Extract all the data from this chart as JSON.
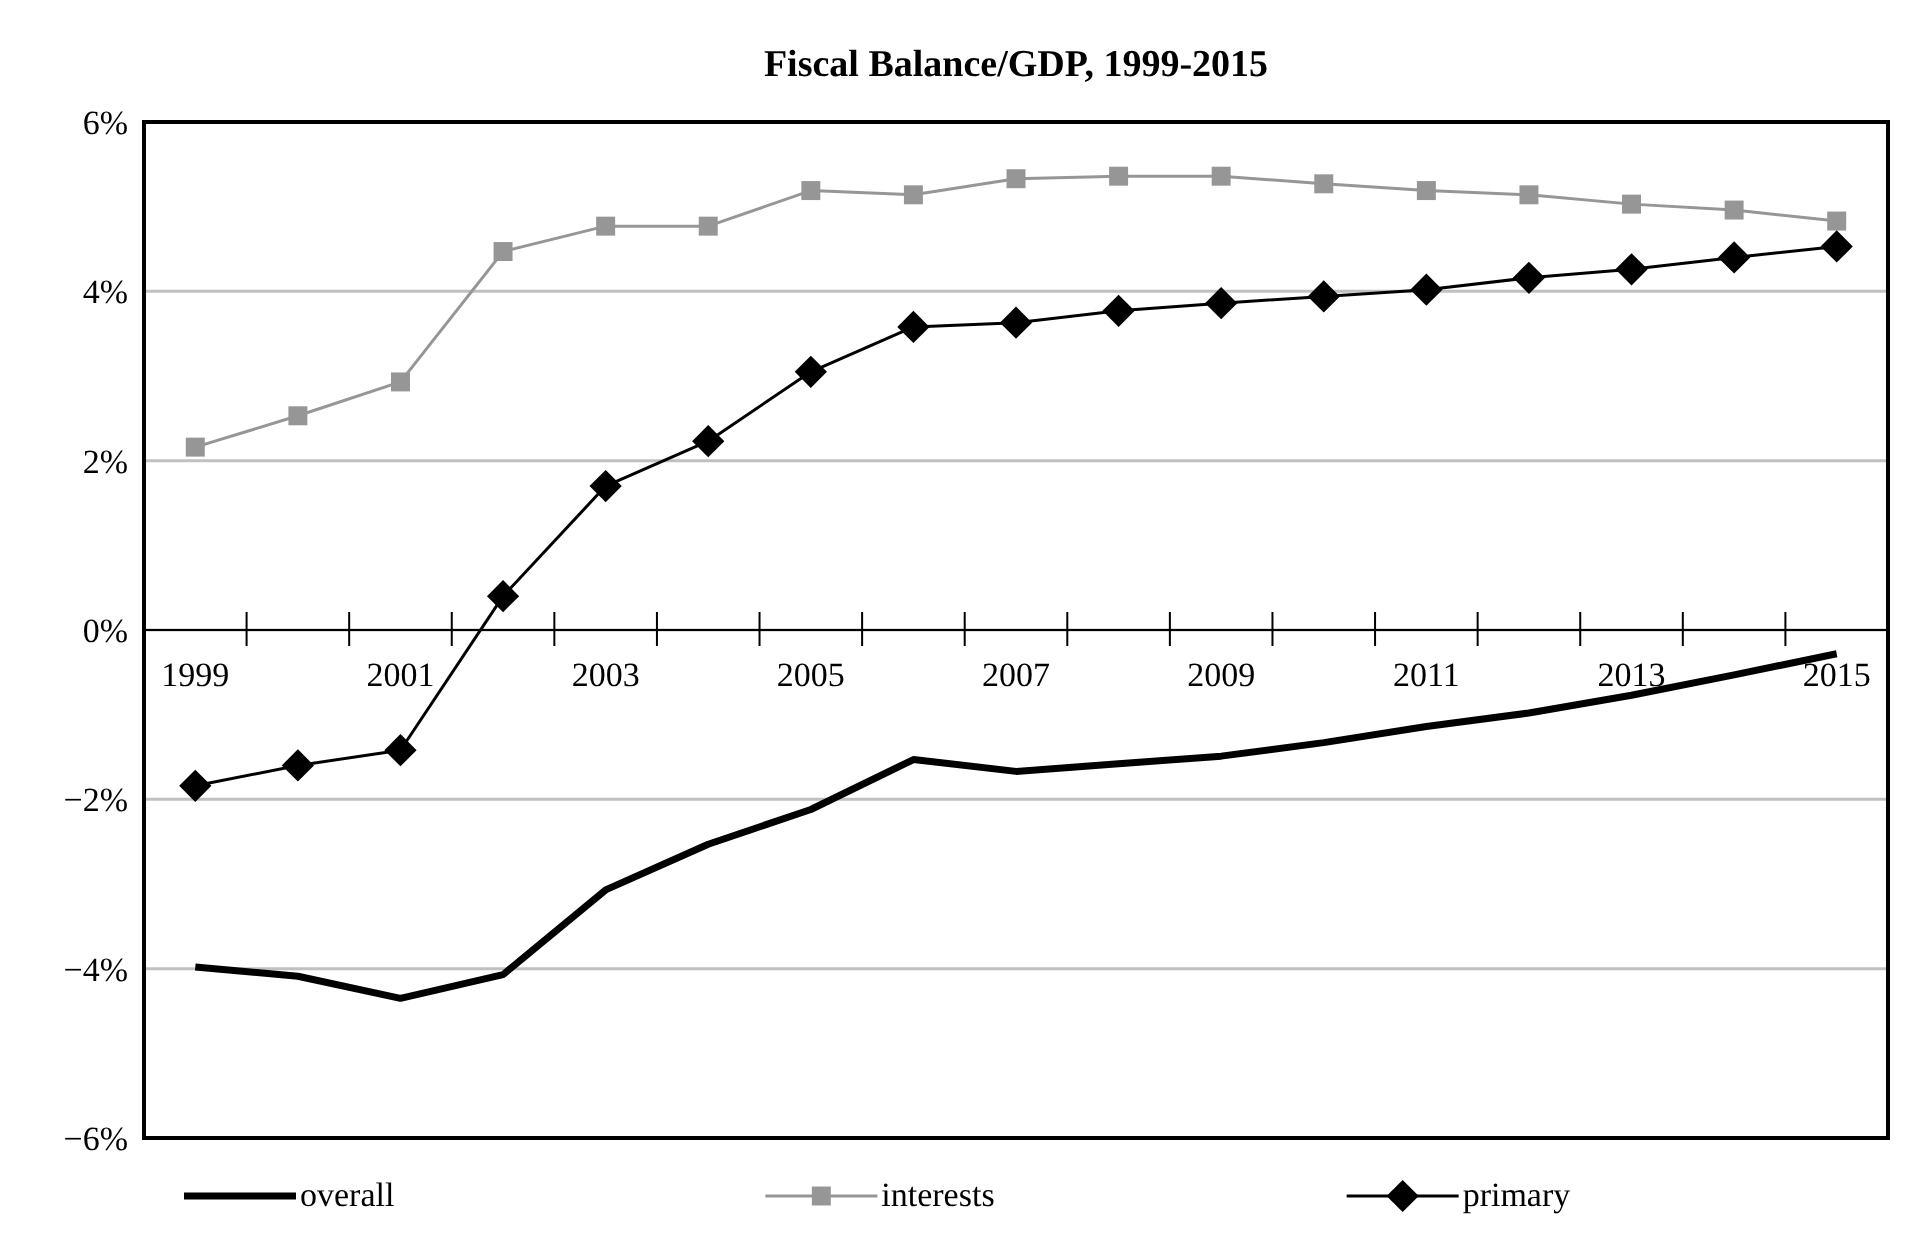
{
  "chart_data": {
    "type": "line",
    "title": "Fiscal Balance/GDP, 1999-2015",
    "categories": [
      "1999",
      null,
      "2001",
      null,
      "2003",
      null,
      "2005",
      null,
      "2007",
      null,
      "2009",
      null,
      "2011",
      null,
      "2013",
      null,
      "2015"
    ],
    "series": [
      {
        "name": "overall",
        "color": "#000000",
        "marker": "none",
        "values": [
          -3.98,
          -4.09,
          -4.35,
          -4.07,
          -3.07,
          -2.53,
          -2.12,
          -1.53,
          -1.67,
          -1.58,
          -1.49,
          -1.33,
          -1.14,
          -0.98,
          -0.77,
          -0.53,
          -0.28
        ]
      },
      {
        "name": "interests",
        "color": "#969696",
        "marker": "square",
        "values": [
          2.16,
          2.53,
          2.93,
          4.47,
          4.77,
          4.77,
          5.19,
          5.14,
          5.33,
          5.36,
          5.36,
          5.27,
          5.19,
          5.14,
          5.03,
          4.96,
          4.83
        ]
      },
      {
        "name": "primary",
        "color": "#000000",
        "marker": "diamond",
        "values": [
          -1.84,
          -1.6,
          -1.42,
          0.4,
          1.7,
          2.23,
          3.05,
          3.58,
          3.63,
          3.77,
          3.86,
          3.94,
          4.02,
          4.16,
          4.26,
          4.4,
          4.53
        ]
      }
    ],
    "ylim": [
      -6,
      6
    ],
    "yticks": [
      {
        "value": -6,
        "label": "−6%"
      },
      {
        "value": -4,
        "label": "−4%"
      },
      {
        "value": -2,
        "label": "−2%"
      },
      {
        "value": 0,
        "label": "0%"
      },
      {
        "value": 2,
        "label": "2%"
      },
      {
        "value": 4,
        "label": "4%"
      },
      {
        "value": 6,
        "label": "6%"
      }
    ],
    "grid": "y",
    "legend": "bottom"
  }
}
